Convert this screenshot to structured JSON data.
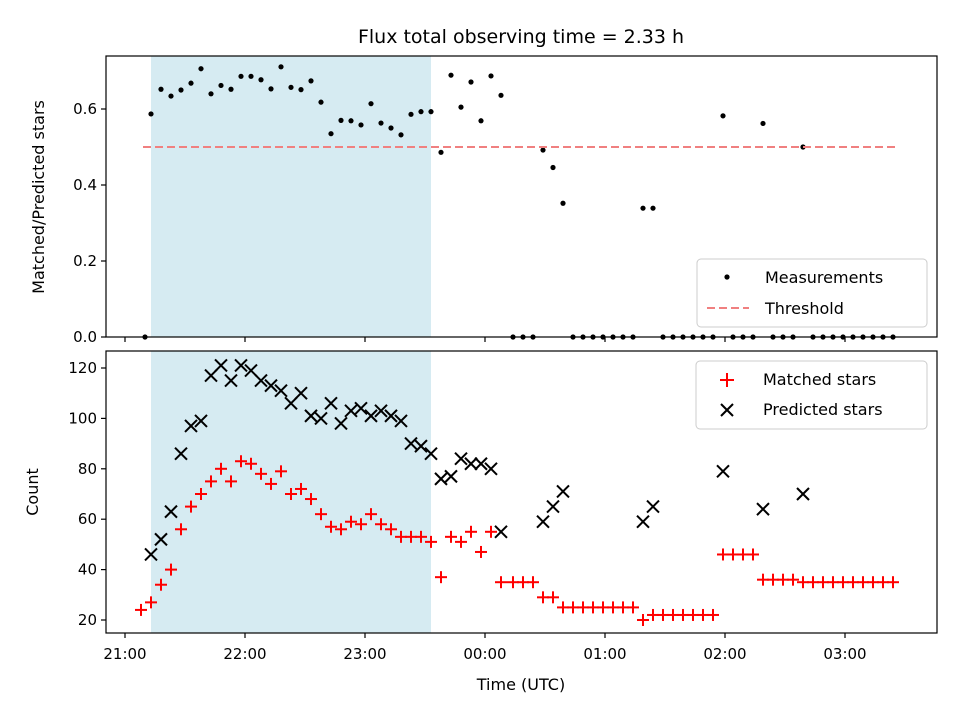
{
  "chart_data": [
    {
      "type": "scatter",
      "title": "Flux total observing time = 2.33 h",
      "ylabel": "Matched/Predicted stars",
      "xlim": [
        "21:00",
        "03:45"
      ],
      "ylim": [
        0,
        0.74
      ],
      "yticks": [
        "0.0",
        "0.2",
        "0.4",
        "0.6"
      ],
      "grid": false,
      "legend_position": "lower-right",
      "shaded_interval": {
        "start": "21:13",
        "end": "23:33",
        "color": "#add8e6"
      },
      "series": [
        {
          "name": "Measurements",
          "marker": "dot",
          "color": "#000000",
          "points": [
            [
              "21:10",
              0.0
            ],
            [
              "21:13",
              0.587
            ],
            [
              "21:18",
              0.652
            ],
            [
              "21:23",
              0.634
            ],
            [
              "21:28",
              0.65
            ],
            [
              "21:33",
              0.668
            ],
            [
              "21:38",
              0.706
            ],
            [
              "21:43",
              0.64
            ],
            [
              "21:48",
              0.662
            ],
            [
              "21:53",
              0.652
            ],
            [
              "21:58",
              0.686
            ],
            [
              "22:03",
              0.686
            ],
            [
              "22:08",
              0.677
            ],
            [
              "22:13",
              0.653
            ],
            [
              "22:18",
              0.711
            ],
            [
              "22:23",
              0.657
            ],
            [
              "22:28",
              0.651
            ],
            [
              "22:33",
              0.674
            ],
            [
              "22:38",
              0.618
            ],
            [
              "22:43",
              0.535
            ],
            [
              "22:48",
              0.57
            ],
            [
              "22:53",
              0.569
            ],
            [
              "22:58",
              0.558
            ],
            [
              "23:03",
              0.614
            ],
            [
              "23:08",
              0.563
            ],
            [
              "23:13",
              0.55
            ],
            [
              "23:18",
              0.532
            ],
            [
              "23:23",
              0.586
            ],
            [
              "23:28",
              0.593
            ],
            [
              "23:33",
              0.593
            ],
            [
              "23:38",
              0.486
            ],
            [
              "23:43",
              0.689
            ],
            [
              "23:48",
              0.605
            ],
            [
              "23:53",
              0.671
            ],
            [
              "23:58",
              0.569
            ],
            [
              "00:03",
              0.687
            ],
            [
              "00:08",
              0.636
            ],
            [
              "00:14",
              0.0
            ],
            [
              "00:19",
              0.0
            ],
            [
              "00:24",
              0.0
            ],
            [
              "00:29",
              0.492
            ],
            [
              "00:34",
              0.446
            ],
            [
              "00:39",
              0.352
            ],
            [
              "00:44",
              0.0
            ],
            [
              "00:49",
              0.0
            ],
            [
              "00:54",
              0.0
            ],
            [
              "00:59",
              0.0
            ],
            [
              "01:04",
              0.0
            ],
            [
              "01:09",
              0.0
            ],
            [
              "01:14",
              0.0
            ],
            [
              "01:19",
              0.339
            ],
            [
              "01:24",
              0.339
            ],
            [
              "01:29",
              0.0
            ],
            [
              "01:34",
              0.0
            ],
            [
              "01:39",
              0.0
            ],
            [
              "01:44",
              0.0
            ],
            [
              "01:49",
              0.0
            ],
            [
              "01:54",
              0.0
            ],
            [
              "01:59",
              0.582
            ],
            [
              "02:04",
              0.0
            ],
            [
              "02:09",
              0.0
            ],
            [
              "02:14",
              0.0
            ],
            [
              "02:19",
              0.562
            ],
            [
              "02:24",
              0.0
            ],
            [
              "02:29",
              0.0
            ],
            [
              "02:34",
              0.0
            ],
            [
              "02:39",
              0.5
            ],
            [
              "02:44",
              0.0
            ],
            [
              "02:49",
              0.0
            ],
            [
              "02:54",
              0.0
            ],
            [
              "02:59",
              0.0
            ],
            [
              "03:04",
              0.0
            ],
            [
              "03:09",
              0.0
            ],
            [
              "03:14",
              0.0
            ],
            [
              "03:19",
              0.0
            ],
            [
              "03:24",
              0.0
            ]
          ]
        },
        {
          "name": "Threshold",
          "type": "line",
          "style": "dashed",
          "color": "#f08080",
          "points": [
            [
              "21:09",
              0.5
            ],
            [
              "03:25",
              0.5
            ]
          ]
        }
      ]
    },
    {
      "type": "scatter",
      "xlabel": "Time (UTC)",
      "ylabel": "Count",
      "xticks": [
        "21:00",
        "22:00",
        "23:00",
        "00:00",
        "01:00",
        "02:00",
        "03:00"
      ],
      "xlim": [
        "21:00",
        "03:45"
      ],
      "ylim": [
        15,
        127
      ],
      "yticks": [
        "20",
        "40",
        "60",
        "80",
        "100",
        "120"
      ],
      "grid": false,
      "legend_position": "top-right",
      "shaded_interval": {
        "start": "21:13",
        "end": "23:33",
        "color": "#add8e6"
      },
      "series": [
        {
          "name": "Matched stars",
          "marker": "plus",
          "color": "#ff0000",
          "points": [
            [
              "21:08",
              24
            ],
            [
              "21:13",
              27
            ],
            [
              "21:18",
              34
            ],
            [
              "21:23",
              40
            ],
            [
              "21:28",
              56
            ],
            [
              "21:33",
              65
            ],
            [
              "21:38",
              70
            ],
            [
              "21:43",
              75
            ],
            [
              "21:48",
              80
            ],
            [
              "21:53",
              75
            ],
            [
              "21:58",
              83
            ],
            [
              "22:03",
              82
            ],
            [
              "22:08",
              78
            ],
            [
              "22:13",
              74
            ],
            [
              "22:18",
              79
            ],
            [
              "22:23",
              70
            ],
            [
              "22:28",
              72
            ],
            [
              "22:33",
              68
            ],
            [
              "22:38",
              62
            ],
            [
              "22:43",
              57
            ],
            [
              "22:48",
              56
            ],
            [
              "22:53",
              59
            ],
            [
              "22:58",
              58
            ],
            [
              "23:03",
              62
            ],
            [
              "23:08",
              58
            ],
            [
              "23:13",
              56
            ],
            [
              "23:18",
              53
            ],
            [
              "23:23",
              53
            ],
            [
              "23:28",
              53
            ],
            [
              "23:33",
              51
            ],
            [
              "23:38",
              37
            ],
            [
              "23:43",
              53
            ],
            [
              "23:48",
              51
            ],
            [
              "23:53",
              55
            ],
            [
              "23:58",
              47
            ],
            [
              "00:03",
              55
            ],
            [
              "00:08",
              35
            ],
            [
              "00:14",
              35
            ],
            [
              "00:19",
              35
            ],
            [
              "00:24",
              35
            ],
            [
              "00:29",
              29
            ],
            [
              "00:34",
              29
            ],
            [
              "00:39",
              25
            ],
            [
              "00:44",
              25
            ],
            [
              "00:49",
              25
            ],
            [
              "00:54",
              25
            ],
            [
              "00:59",
              25
            ],
            [
              "01:04",
              25
            ],
            [
              "01:09",
              25
            ],
            [
              "01:14",
              25
            ],
            [
              "01:19",
              20
            ],
            [
              "01:24",
              22
            ],
            [
              "01:29",
              22
            ],
            [
              "01:34",
              22
            ],
            [
              "01:39",
              22
            ],
            [
              "01:44",
              22
            ],
            [
              "01:49",
              22
            ],
            [
              "01:54",
              22
            ],
            [
              "01:59",
              46
            ],
            [
              "02:04",
              46
            ],
            [
              "02:09",
              46
            ],
            [
              "02:14",
              46
            ],
            [
              "02:19",
              36
            ],
            [
              "02:24",
              36
            ],
            [
              "02:29",
              36
            ],
            [
              "02:34",
              36
            ],
            [
              "02:39",
              35
            ],
            [
              "02:44",
              35
            ],
            [
              "02:49",
              35
            ],
            [
              "02:54",
              35
            ],
            [
              "02:59",
              35
            ],
            [
              "03:04",
              35
            ],
            [
              "03:09",
              35
            ],
            [
              "03:14",
              35
            ],
            [
              "03:19",
              35
            ],
            [
              "03:24",
              35
            ]
          ]
        },
        {
          "name": "Predicted stars",
          "marker": "x",
          "color": "#000000",
          "points": [
            [
              "21:13",
              46
            ],
            [
              "21:18",
              52
            ],
            [
              "21:23",
              63
            ],
            [
              "21:28",
              86
            ],
            [
              "21:33",
              97
            ],
            [
              "21:38",
              99
            ],
            [
              "21:43",
              117
            ],
            [
              "21:48",
              121
            ],
            [
              "21:53",
              115
            ],
            [
              "21:58",
              121
            ],
            [
              "22:03",
              119
            ],
            [
              "22:08",
              115
            ],
            [
              "22:13",
              113
            ],
            [
              "22:18",
              111
            ],
            [
              "22:23",
              106
            ],
            [
              "22:28",
              110
            ],
            [
              "22:33",
              101
            ],
            [
              "22:38",
              100
            ],
            [
              "22:43",
              106
            ],
            [
              "22:48",
              98
            ],
            [
              "22:53",
              103
            ],
            [
              "22:58",
              104
            ],
            [
              "23:03",
              101
            ],
            [
              "23:08",
              103
            ],
            [
              "23:13",
              101
            ],
            [
              "23:18",
              99
            ],
            [
              "23:23",
              90
            ],
            [
              "23:28",
              89
            ],
            [
              "23:33",
              86
            ],
            [
              "23:38",
              76
            ],
            [
              "23:43",
              77
            ],
            [
              "23:48",
              84
            ],
            [
              "23:53",
              82
            ],
            [
              "23:58",
              82
            ],
            [
              "00:03",
              80
            ],
            [
              "00:08",
              55
            ],
            [
              "00:29",
              59
            ],
            [
              "00:34",
              65
            ],
            [
              "00:39",
              71
            ],
            [
              "01:19",
              59
            ],
            [
              "01:24",
              65
            ],
            [
              "01:59",
              79
            ],
            [
              "02:19",
              64
            ],
            [
              "02:39",
              70
            ]
          ]
        }
      ]
    }
  ]
}
